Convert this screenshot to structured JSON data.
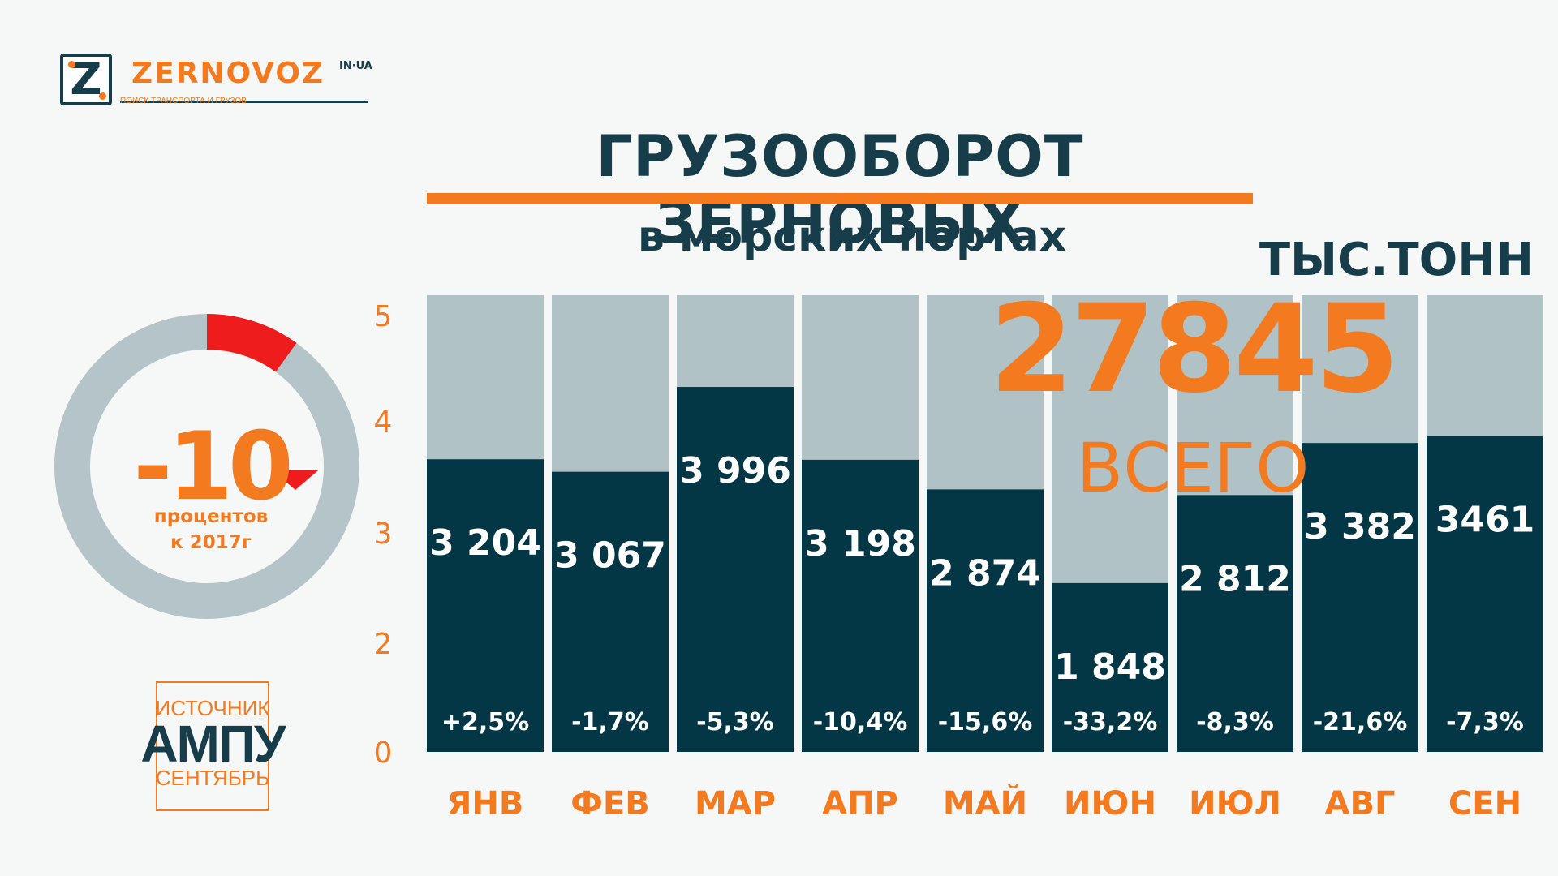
{
  "logo": {
    "letter": "Z",
    "name": "ZERNOVOZ",
    "domain": "IN·UA",
    "tagline": "ПОИСК ТРАНСПОРТА И ГРУЗОВ"
  },
  "header": {
    "title": "ГРУЗООБОРОТ ЗЕРНОВЫХ",
    "subtitle": "в морских портах",
    "unit": "ТЫС.ТОНН"
  },
  "total": {
    "value": "27845",
    "label": "ВСЕГО"
  },
  "change": {
    "value": "-10",
    "line1": "процентов",
    "line2": "к 2017г",
    "fraction": 0.1
  },
  "source": {
    "label": "ИСТОЧНИК",
    "name": "АМПУ",
    "period": "СЕНТЯБРЬ"
  },
  "colors": {
    "accent": "#f47a20",
    "dark": "#033745",
    "bar_bg": "#b0c2c6",
    "donut_bg": "#b4c4c8",
    "negative": "#ee1c1c",
    "text_dark": "#173c4a"
  },
  "chart_data": {
    "type": "bar",
    "categories": [
      "ЯНВ",
      "ФЕВ",
      "МАР",
      "АПР",
      "МАЙ",
      "ИЮН",
      "ИЮЛ",
      "АВГ",
      "СЕН"
    ],
    "values": [
      3204,
      3067,
      3996,
      3198,
      2874,
      1848,
      2812,
      3382,
      3461
    ],
    "value_labels": [
      "3 204",
      "3 067",
      "3 996",
      "3 198",
      "2 874",
      "1 848",
      "2 812",
      "3 382",
      "3461"
    ],
    "change_labels": [
      "+2,5%",
      "-1,7%",
      "-5,3%",
      "-10,4%",
      "-15,6%",
      "-33,2%",
      "-8,3%",
      "-21,6%",
      "-7,3%"
    ],
    "y_ticks": [
      "0",
      "2",
      "3",
      "4",
      "5"
    ],
    "ylim": [
      0,
      5000
    ],
    "grid": false,
    "legend": "none"
  }
}
